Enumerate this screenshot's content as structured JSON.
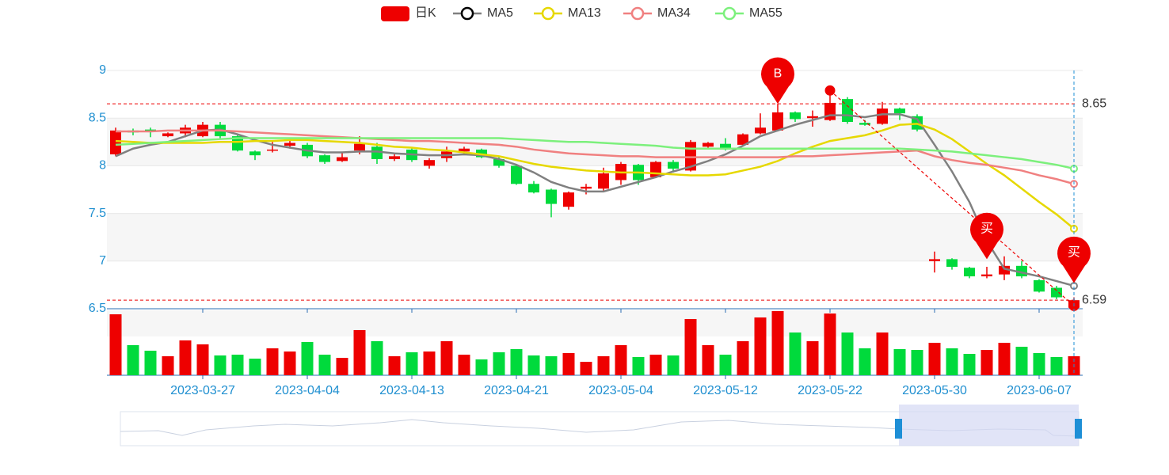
{
  "chart_data": {
    "type": "candlestick",
    "categories": [
      null,
      null,
      null,
      null,
      null,
      "2023-03-27",
      null,
      null,
      null,
      null,
      null,
      "2023-04-04",
      null,
      null,
      null,
      null,
      null,
      "2023-04-13",
      null,
      null,
      null,
      null,
      null,
      "2023-04-21",
      null,
      null,
      null,
      null,
      null,
      "2023-05-04",
      null,
      null,
      null,
      null,
      null,
      "2023-05-12",
      null,
      null,
      null,
      null,
      null,
      "2023-05-22",
      null,
      null,
      null,
      null,
      null,
      "2023-05-30",
      null,
      null,
      null,
      null,
      null,
      "2023-06-07",
      null,
      null
    ],
    "series": [
      {
        "name": "日K",
        "type": "candlestick",
        "up_color": "#ee0000",
        "down_color": "#00da3c",
        "open": [
          8.12,
          8.37,
          8.38,
          8.31,
          8.34,
          8.31,
          8.43,
          8.31,
          8.15,
          8.16,
          8.21,
          8.22,
          8.11,
          8.05,
          8.16,
          8.2,
          8.07,
          8.17,
          8.0,
          8.08,
          8.15,
          8.17,
          8.07,
          8.0,
          7.81,
          7.75,
          7.57,
          7.76,
          7.76,
          7.85,
          8.01,
          7.88,
          8.04,
          7.95,
          8.2,
          8.23,
          8.22,
          8.34,
          8.37,
          8.56,
          8.5,
          8.48,
          8.7,
          8.45,
          8.44,
          8.6,
          8.52,
          7.0,
          7.02,
          6.93,
          6.84,
          6.86,
          6.95,
          6.8,
          6.72,
          6.51
        ],
        "close": [
          8.37,
          8.35,
          8.36,
          8.34,
          8.4,
          8.43,
          8.31,
          8.16,
          8.11,
          8.17,
          8.24,
          8.1,
          8.04,
          8.09,
          8.23,
          8.07,
          8.1,
          8.06,
          8.06,
          8.15,
          8.18,
          8.09,
          8.0,
          7.81,
          7.72,
          7.6,
          7.72,
          7.78,
          7.92,
          8.02,
          7.85,
          8.04,
          7.97,
          8.25,
          8.24,
          8.19,
          8.33,
          8.4,
          8.56,
          8.49,
          8.52,
          8.66,
          8.46,
          8.43,
          8.6,
          8.55,
          8.38,
          7.02,
          6.94,
          6.84,
          6.86,
          6.95,
          6.84,
          6.68,
          6.62,
          6.59
        ],
        "low": [
          8.1,
          8.32,
          8.3,
          8.3,
          8.3,
          8.3,
          8.29,
          8.15,
          8.06,
          8.14,
          8.18,
          8.08,
          8.02,
          8.04,
          8.12,
          8.02,
          8.05,
          8.04,
          7.97,
          8.04,
          8.12,
          8.08,
          7.98,
          7.8,
          7.71,
          7.46,
          7.54,
          7.7,
          7.74,
          7.8,
          7.8,
          7.87,
          7.93,
          7.94,
          8.18,
          8.16,
          8.21,
          8.33,
          8.36,
          8.46,
          8.41,
          8.47,
          8.44,
          8.42,
          8.43,
          8.48,
          8.36,
          6.88,
          6.91,
          6.82,
          6.82,
          6.8,
          6.82,
          6.67,
          6.6,
          6.5
        ],
        "high": [
          8.4,
          8.39,
          8.4,
          8.35,
          8.43,
          8.46,
          8.46,
          8.33,
          8.16,
          8.25,
          8.27,
          8.24,
          8.12,
          8.14,
          8.31,
          8.24,
          8.12,
          8.19,
          8.08,
          8.2,
          8.2,
          8.18,
          8.09,
          8.02,
          7.84,
          7.76,
          7.73,
          7.81,
          7.98,
          8.04,
          8.02,
          8.05,
          8.06,
          8.27,
          8.25,
          8.29,
          8.34,
          8.55,
          8.65,
          8.57,
          8.58,
          8.8,
          8.72,
          8.48,
          8.67,
          8.61,
          8.54,
          7.1,
          7.03,
          6.94,
          6.94,
          7.05,
          7.0,
          6.81,
          6.74,
          6.62
        ]
      },
      {
        "name": "MA5",
        "color": "#808080",
        "values": [
          8.1,
          8.18,
          8.22,
          8.25,
          8.31,
          8.37,
          8.38,
          8.33,
          8.27,
          8.22,
          8.19,
          8.16,
          8.14,
          8.14,
          8.15,
          8.15,
          8.13,
          8.12,
          8.11,
          8.11,
          8.12,
          8.11,
          8.07,
          8.01,
          7.93,
          7.83,
          7.77,
          7.73,
          7.73,
          7.78,
          7.83,
          7.88,
          7.94,
          7.99,
          8.05,
          8.12,
          8.21,
          8.31,
          8.37,
          8.43,
          8.48,
          8.53,
          8.53,
          8.51,
          8.54,
          8.54,
          8.49,
          8.22,
          7.94,
          7.62,
          7.21,
          6.92,
          6.88,
          6.84,
          6.79,
          6.74
        ]
      },
      {
        "name": "MA13",
        "color": "#e6d800",
        "values": [
          8.26,
          8.25,
          8.24,
          8.24,
          8.24,
          8.24,
          8.25,
          8.25,
          8.26,
          8.26,
          8.27,
          8.27,
          8.26,
          8.25,
          8.24,
          8.22,
          8.2,
          8.19,
          8.17,
          8.16,
          8.14,
          8.12,
          8.1,
          8.06,
          8.02,
          7.99,
          7.97,
          7.95,
          7.94,
          7.93,
          7.93,
          7.92,
          7.91,
          7.9,
          7.9,
          7.91,
          7.95,
          7.99,
          8.05,
          8.13,
          8.2,
          8.26,
          8.29,
          8.32,
          8.37,
          8.43,
          8.44,
          8.38,
          8.28,
          8.15,
          8.02,
          7.9,
          7.76,
          7.62,
          7.49,
          7.34
        ]
      },
      {
        "name": "MA34",
        "color": "#f08080",
        "values": [
          8.36,
          8.36,
          8.36,
          8.37,
          8.37,
          8.37,
          8.37,
          8.36,
          8.35,
          8.34,
          8.33,
          8.32,
          8.31,
          8.3,
          8.29,
          8.28,
          8.27,
          8.26,
          8.26,
          8.25,
          8.24,
          8.23,
          8.22,
          8.2,
          8.17,
          8.15,
          8.13,
          8.12,
          8.11,
          8.1,
          8.1,
          8.09,
          8.09,
          8.09,
          8.09,
          8.09,
          8.09,
          8.09,
          8.09,
          8.1,
          8.1,
          8.11,
          8.12,
          8.13,
          8.14,
          8.15,
          8.16,
          8.1,
          8.06,
          8.03,
          8.01,
          7.98,
          7.95,
          7.9,
          7.86,
          7.81
        ]
      },
      {
        "name": "MA55",
        "color": "#7cf07c",
        "values": [
          8.22,
          8.23,
          8.24,
          8.25,
          8.26,
          8.27,
          8.28,
          8.29,
          8.29,
          8.29,
          8.29,
          8.29,
          8.29,
          8.29,
          8.29,
          8.29,
          8.29,
          8.29,
          8.29,
          8.29,
          8.29,
          8.29,
          8.29,
          8.28,
          8.27,
          8.26,
          8.25,
          8.25,
          8.24,
          8.23,
          8.22,
          8.21,
          8.19,
          8.18,
          8.18,
          8.18,
          8.18,
          8.18,
          8.18,
          8.18,
          8.18,
          8.18,
          8.18,
          8.18,
          8.18,
          8.18,
          8.17,
          8.16,
          8.15,
          8.13,
          8.11,
          8.09,
          8.07,
          8.04,
          8.01,
          7.97
        ]
      }
    ],
    "volume": {
      "values": [
        77,
        38,
        31,
        24,
        44,
        39,
        25,
        26,
        21,
        34,
        30,
        42,
        26,
        22,
        57,
        43,
        24,
        29,
        30,
        43,
        26,
        20,
        29,
        33,
        25,
        24,
        28,
        17,
        24,
        38,
        23,
        26,
        25,
        71,
        38,
        26,
        43,
        73,
        81,
        54,
        43,
        78,
        54,
        34,
        54,
        33,
        32,
        41,
        34,
        27,
        32,
        41,
        36,
        28,
        23,
        24
      ],
      "ylim": [
        0,
        82
      ]
    },
    "ylim": [
      6.5,
      9
    ],
    "yticks": [
      6.5,
      7,
      7.5,
      8,
      8.5,
      9
    ],
    "split_area": true,
    "mark_lines": [
      8.65,
      6.59
    ],
    "pins": [
      {
        "x": 38,
        "value": 8.65,
        "label": "B"
      },
      {
        "x": 50,
        "value": 7.02,
        "label": "买"
      },
      {
        "x": 55,
        "value": 6.77,
        "label": "买"
      }
    ],
    "trend_line": {
      "x": [
        41,
        55
      ],
      "values": [
        8.79,
        6.53
      ],
      "color": "#ee0000"
    },
    "legend": "top"
  }
}
